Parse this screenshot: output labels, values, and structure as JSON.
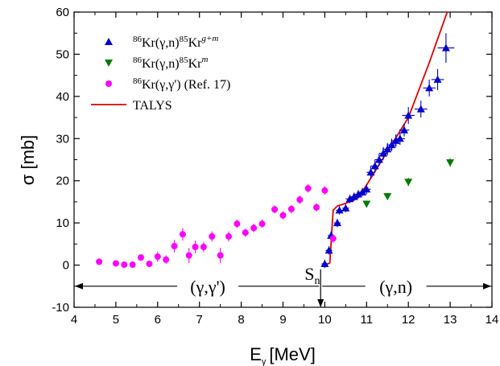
{
  "chart_data": {
    "type": "scatter",
    "xlabel": "E",
    "xlabel_sub": "γ",
    "xlabel_unit": "[MeV]",
    "ylabel": "σ [mb]",
    "xlim": [
      4,
      14
    ],
    "ylim": [
      -10,
      60
    ],
    "x_ticks": [
      "4",
      "5",
      "6",
      "7",
      "8",
      "9",
      "10",
      "11",
      "12",
      "13",
      "14"
    ],
    "y_ticks": [
      "-10",
      "0",
      "10",
      "20",
      "30",
      "40",
      "50",
      "60"
    ],
    "grid": false,
    "legend_position": "top-left",
    "series": [
      {
        "name": "86Kr(γ,n)85Kr g+m",
        "color": "#0000cc",
        "marker": "triangle-up",
        "points": [
          [
            10.0,
            0.3,
            0.08,
            1.0
          ],
          [
            10.1,
            3.5,
            0.08,
            1.0
          ],
          [
            10.15,
            7.0,
            0.08,
            1.0
          ],
          [
            10.3,
            10.0,
            0.08,
            1.0
          ],
          [
            10.35,
            13.0,
            0.08,
            1.0
          ],
          [
            10.5,
            13.5,
            0.08,
            1.0
          ],
          [
            10.6,
            15.7,
            0.1,
            1.0
          ],
          [
            10.7,
            16.2,
            0.1,
            1.0
          ],
          [
            10.8,
            16.8,
            0.1,
            1.0
          ],
          [
            10.9,
            17.3,
            0.1,
            1.0
          ],
          [
            11.0,
            18.0,
            0.1,
            1.2
          ],
          [
            11.1,
            22.0,
            0.1,
            1.5
          ],
          [
            11.2,
            23.5,
            0.1,
            1.5
          ],
          [
            11.3,
            25.0,
            0.1,
            1.5
          ],
          [
            11.4,
            26.5,
            0.1,
            1.5
          ],
          [
            11.5,
            27.5,
            0.12,
            1.5
          ],
          [
            11.6,
            28.5,
            0.12,
            1.5
          ],
          [
            11.7,
            29.5,
            0.12,
            1.5
          ],
          [
            11.8,
            30.0,
            0.12,
            1.5
          ],
          [
            11.9,
            32.0,
            0.12,
            1.5
          ],
          [
            12.0,
            35.5,
            0.15,
            2.0
          ],
          [
            12.3,
            37.0,
            0.15,
            2.0
          ],
          [
            12.5,
            42.0,
            0.15,
            2.0
          ],
          [
            12.7,
            44.0,
            0.15,
            2.5
          ],
          [
            12.9,
            51.5,
            0.2,
            3.5
          ]
        ]
      },
      {
        "name": "86Kr(γ,n)85Kr m",
        "color": "#007a00",
        "marker": "triangle-down",
        "points": [
          [
            11.0,
            14.5,
            0.0,
            0.8
          ],
          [
            11.5,
            16.3,
            0.0,
            0.8
          ],
          [
            12.0,
            19.7,
            0.0,
            1.0
          ],
          [
            13.0,
            24.3,
            0.0,
            1.0
          ]
        ]
      },
      {
        "name": "86Kr(γ,γ') (Ref. 17)",
        "color": "#ff00ff",
        "marker": "circle",
        "points": [
          [
            4.6,
            0.8,
            0,
            0.4
          ],
          [
            5.0,
            0.4,
            0,
            0.4
          ],
          [
            5.2,
            0.1,
            0,
            0.4
          ],
          [
            5.4,
            0.1,
            0,
            0.5
          ],
          [
            5.6,
            1.8,
            0,
            0.6
          ],
          [
            5.8,
            0.3,
            0,
            0.5
          ],
          [
            6.0,
            2.0,
            0,
            1.2
          ],
          [
            6.2,
            1.3,
            0,
            1.0
          ],
          [
            6.4,
            4.5,
            0,
            1.5
          ],
          [
            6.6,
            7.3,
            0,
            1.5
          ],
          [
            6.75,
            2.3,
            0,
            1.8
          ],
          [
            6.9,
            4.3,
            0,
            1.5
          ],
          [
            7.1,
            4.3,
            0,
            1.2
          ],
          [
            7.3,
            6.8,
            0,
            1.2
          ],
          [
            7.5,
            2.3,
            0,
            1.8
          ],
          [
            7.7,
            6.8,
            0,
            1.2
          ],
          [
            7.9,
            9.8,
            0,
            1.0
          ],
          [
            8.1,
            7.7,
            0,
            1.0
          ],
          [
            8.3,
            8.8,
            0,
            1.0
          ],
          [
            8.5,
            9.8,
            0,
            1.0
          ],
          [
            8.8,
            13.2,
            0,
            1.0
          ],
          [
            9.0,
            11.8,
            0,
            1.0
          ],
          [
            9.2,
            13.3,
            0,
            1.0
          ],
          [
            9.4,
            15.5,
            0,
            1.0
          ],
          [
            9.6,
            18.2,
            0,
            1.0
          ],
          [
            9.8,
            13.7,
            0,
            1.0
          ],
          [
            10.0,
            17.7,
            0,
            1.0
          ],
          [
            10.2,
            6.3,
            0,
            1.0
          ]
        ]
      },
      {
        "name": "TALYS",
        "color": "#e00000",
        "marker": "line",
        "x": [
          10.05,
          10.12,
          10.15,
          10.18,
          10.2,
          10.3,
          10.6,
          10.8,
          11.0,
          11.5,
          12.0,
          12.5,
          13.0
        ],
        "y": [
          0.2,
          0.5,
          5.0,
          10.0,
          13.0,
          14.0,
          15.0,
          16.0,
          19.0,
          27.0,
          35.0,
          48.0,
          62.0
        ]
      }
    ],
    "legend": [
      {
        "pre": "86",
        "main": "Kr(γ,n)",
        "mid": "85",
        "post": "Kr",
        "sup": "g+m"
      },
      {
        "pre": "86",
        "main": "Kr(γ,n)",
        "mid": "85",
        "post": "Kr",
        "sup": "m"
      },
      {
        "pre": "86",
        "main": "Kr(γ,γ') (Ref. 17)",
        "mid": "",
        "post": "",
        "sup": ""
      },
      {
        "pre": "",
        "main": "TALYS",
        "mid": "",
        "post": "",
        "sup": ""
      }
    ],
    "annotations": {
      "sn_label": "S",
      "sn_sub": "n",
      "sn_x": 9.9,
      "left_region": "(γ,γ')",
      "right_region": "(γ,n)",
      "arrow_y": -5,
      "left_label_x": 7.2,
      "right_label_x": 11.7
    }
  }
}
